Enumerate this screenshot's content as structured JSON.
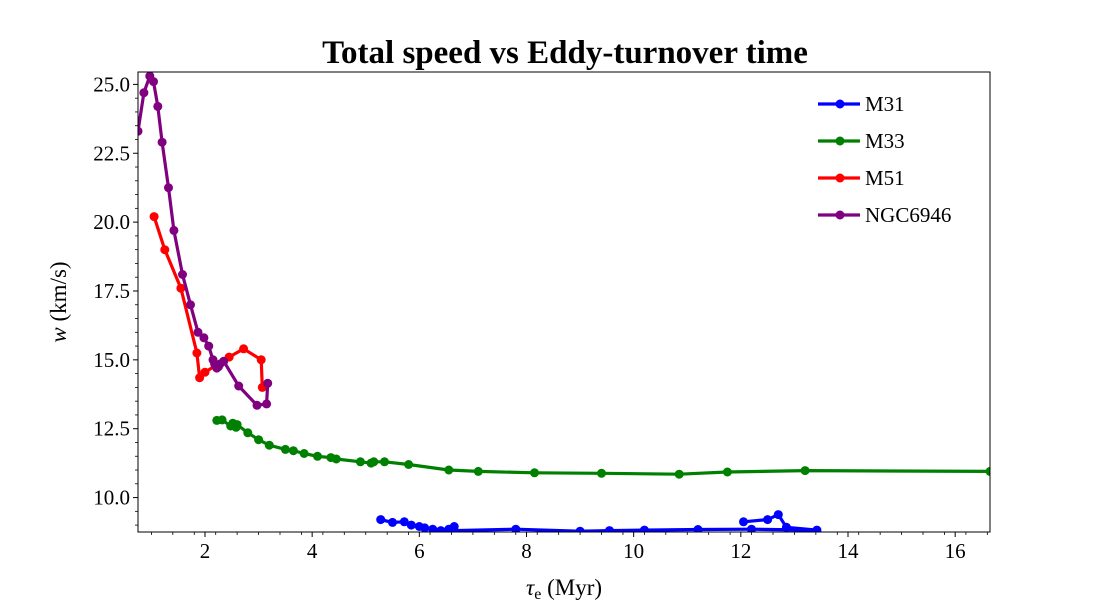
{
  "chart_data": {
    "type": "line",
    "title": "Total speed vs Eddy-turnover time",
    "xlabel_symbol": "τ",
    "xlabel_subscript": "e",
    "xlabel_unit": " (Myr)",
    "ylabel_symbol": "w",
    "ylabel_unit": " (km/s)",
    "xlim": [
      0.75,
      16.65
    ],
    "ylim": [
      8.75,
      25.45
    ],
    "xticks": [
      2,
      4,
      6,
      8,
      10,
      12,
      14,
      16
    ],
    "xtick_labels": [
      "2",
      "4",
      "6",
      "8",
      "10",
      "12",
      "14",
      "16"
    ],
    "yticks": [
      10.0,
      12.5,
      15.0,
      17.5,
      20.0,
      22.5,
      25.0
    ],
    "ytick_labels": [
      "10.0",
      "12.5",
      "15.0",
      "17.5",
      "20.0",
      "22.5",
      "25.0"
    ],
    "grid": false,
    "legend_position": "top-right",
    "series": [
      {
        "name": "M31",
        "color": "#0000ff",
        "points": [
          [
            5.28,
            9.2
          ],
          [
            5.5,
            9.1
          ],
          [
            5.72,
            9.12
          ],
          [
            5.85,
            9.0
          ],
          [
            6.0,
            8.95
          ],
          [
            6.1,
            8.9
          ],
          [
            6.25,
            8.85
          ],
          [
            6.4,
            8.8
          ],
          [
            6.55,
            8.85
          ],
          [
            6.65,
            8.95
          ],
          [
            6.65,
            8.8
          ],
          [
            7.8,
            8.85
          ],
          [
            9.0,
            8.78
          ],
          [
            9.55,
            8.8
          ],
          [
            10.2,
            8.82
          ],
          [
            11.2,
            8.84
          ],
          [
            12.2,
            8.85
          ],
          [
            13.42,
            8.82
          ],
          [
            12.85,
            8.92
          ],
          [
            12.7,
            9.38
          ],
          [
            12.5,
            9.2
          ],
          [
            12.05,
            9.12
          ]
        ]
      },
      {
        "name": "M33",
        "color": "#008000",
        "points": [
          [
            2.22,
            12.8
          ],
          [
            2.32,
            12.82
          ],
          [
            2.48,
            12.6
          ],
          [
            2.52,
            12.7
          ],
          [
            2.58,
            12.55
          ],
          [
            2.6,
            12.65
          ],
          [
            2.8,
            12.35
          ],
          [
            3.0,
            12.1
          ],
          [
            3.2,
            11.9
          ],
          [
            3.5,
            11.75
          ],
          [
            3.65,
            11.7
          ],
          [
            3.85,
            11.6
          ],
          [
            4.1,
            11.5
          ],
          [
            4.35,
            11.45
          ],
          [
            4.45,
            11.4
          ],
          [
            4.9,
            11.3
          ],
          [
            5.1,
            11.25
          ],
          [
            5.15,
            11.3
          ],
          [
            5.35,
            11.3
          ],
          [
            5.8,
            11.2
          ],
          [
            6.55,
            11.0
          ],
          [
            7.1,
            10.95
          ],
          [
            8.15,
            10.9
          ],
          [
            9.4,
            10.88
          ],
          [
            10.85,
            10.85
          ],
          [
            11.75,
            10.93
          ],
          [
            13.2,
            10.98
          ],
          [
            16.65,
            10.95
          ]
        ]
      },
      {
        "name": "M51",
        "color": "#ff0000",
        "points": [
          [
            1.05,
            20.2
          ],
          [
            1.25,
            19.0
          ],
          [
            1.55,
            17.6
          ],
          [
            1.85,
            15.25
          ],
          [
            1.9,
            14.35
          ],
          [
            2.0,
            14.55
          ],
          [
            2.45,
            15.1
          ],
          [
            2.72,
            15.4
          ],
          [
            3.05,
            15.0
          ],
          [
            3.07,
            14.0
          ]
        ]
      },
      {
        "name": "NGC6946",
        "color": "#800080",
        "points": [
          [
            0.75,
            23.3
          ],
          [
            0.86,
            24.7
          ],
          [
            0.97,
            25.3
          ],
          [
            1.04,
            25.1
          ],
          [
            1.12,
            24.2
          ],
          [
            1.2,
            22.9
          ],
          [
            1.32,
            21.25
          ],
          [
            1.42,
            19.7
          ],
          [
            1.58,
            18.1
          ],
          [
            1.73,
            17.0
          ],
          [
            1.87,
            16.0
          ],
          [
            1.98,
            15.8
          ],
          [
            2.07,
            15.5
          ],
          [
            2.15,
            15.0
          ],
          [
            2.18,
            14.85
          ],
          [
            2.22,
            14.7
          ],
          [
            2.25,
            14.75
          ],
          [
            2.28,
            14.85
          ],
          [
            2.35,
            14.95
          ],
          [
            2.63,
            14.05
          ],
          [
            2.97,
            13.35
          ],
          [
            3.15,
            13.4
          ],
          [
            3.17,
            14.15
          ]
        ]
      }
    ]
  }
}
